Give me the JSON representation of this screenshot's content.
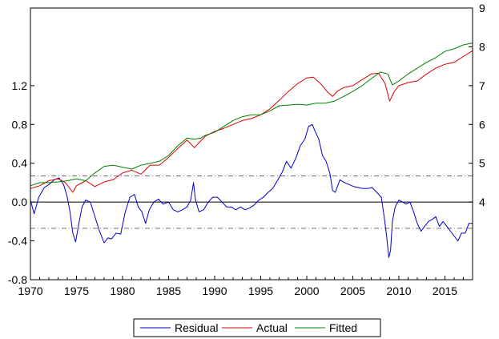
{
  "chart_data": {
    "type": "line",
    "title": "",
    "xlabel": "",
    "ylabel": "",
    "x_range": [
      1970,
      2018
    ],
    "x_ticks": [
      1970,
      1975,
      1980,
      1985,
      1990,
      1995,
      2000,
      2005,
      2010,
      2015
    ],
    "left_axis": {
      "ylim": [
        -0.8,
        2.0
      ],
      "ticks": [
        -0.8,
        -0.4,
        0.0,
        0.4,
        0.8,
        1.2
      ],
      "tick_labels": [
        "-0.8",
        "-0.4",
        "0.0",
        "0.4",
        "0.8",
        "1.2"
      ]
    },
    "right_axis": {
      "ylim": [
        2.0,
        9.0
      ],
      "ticks": [
        4,
        5,
        6,
        7,
        8,
        9
      ],
      "tick_labels": [
        "4",
        "5",
        "6",
        "7",
        "8",
        "9"
      ]
    },
    "reference_lines": [
      {
        "axis": "left",
        "y": 0.0,
        "style": "solid",
        "color": "#000000"
      },
      {
        "axis": "left",
        "y": 0.27,
        "style": "dash-dot",
        "color": "#6e6e6e"
      },
      {
        "axis": "left",
        "y": -0.27,
        "style": "dash-dot",
        "color": "#6e6e6e"
      }
    ],
    "legend_position": "bottom-center",
    "series": [
      {
        "name": "Residual",
        "axis": "left",
        "color": "#0000cc",
        "points": [
          [
            1970.0,
            0.02
          ],
          [
            1970.4,
            -0.12
          ],
          [
            1970.9,
            0.05
          ],
          [
            1971.5,
            0.15
          ],
          [
            1972.0,
            0.18
          ],
          [
            1972.6,
            0.23
          ],
          [
            1973.1,
            0.25
          ],
          [
            1973.6,
            0.18
          ],
          [
            1974.0,
            0.05
          ],
          [
            1974.3,
            -0.1
          ],
          [
            1974.6,
            -0.32
          ],
          [
            1974.9,
            -0.41
          ],
          [
            1975.2,
            -0.25
          ],
          [
            1975.6,
            -0.05
          ],
          [
            1976.0,
            0.02
          ],
          [
            1976.5,
            0.0
          ],
          [
            1977.0,
            -0.15
          ],
          [
            1977.5,
            -0.3
          ],
          [
            1978.0,
            -0.42
          ],
          [
            1978.4,
            -0.37
          ],
          [
            1978.8,
            -0.38
          ],
          [
            1979.3,
            -0.32
          ],
          [
            1979.8,
            -0.33
          ],
          [
            1980.3,
            -0.1
          ],
          [
            1980.8,
            0.05
          ],
          [
            1981.3,
            0.08
          ],
          [
            1981.7,
            -0.05
          ],
          [
            1982.1,
            -0.1
          ],
          [
            1982.5,
            -0.22
          ],
          [
            1982.9,
            -0.08
          ],
          [
            1983.4,
            0.0
          ],
          [
            1983.9,
            0.03
          ],
          [
            1984.4,
            -0.02
          ],
          [
            1985.0,
            0.0
          ],
          [
            1985.5,
            -0.08
          ],
          [
            1986.0,
            -0.1
          ],
          [
            1986.5,
            -0.08
          ],
          [
            1987.0,
            -0.05
          ],
          [
            1987.4,
            0.02
          ],
          [
            1987.7,
            0.2
          ],
          [
            1987.9,
            0.03
          ],
          [
            1988.3,
            -0.1
          ],
          [
            1988.8,
            -0.08
          ],
          [
            1989.3,
            0.0
          ],
          [
            1989.8,
            0.05
          ],
          [
            1990.3,
            0.05
          ],
          [
            1990.8,
            0.0
          ],
          [
            1991.3,
            -0.05
          ],
          [
            1991.8,
            -0.05
          ],
          [
            1992.3,
            -0.08
          ],
          [
            1992.8,
            -0.05
          ],
          [
            1993.3,
            -0.08
          ],
          [
            1993.8,
            -0.06
          ],
          [
            1994.3,
            -0.03
          ],
          [
            1994.8,
            0.02
          ],
          [
            1995.3,
            0.05
          ],
          [
            1995.8,
            0.1
          ],
          [
            1996.3,
            0.14
          ],
          [
            1996.8,
            0.22
          ],
          [
            1997.3,
            0.3
          ],
          [
            1997.8,
            0.42
          ],
          [
            1998.3,
            0.35
          ],
          [
            1998.8,
            0.45
          ],
          [
            1999.3,
            0.58
          ],
          [
            1999.8,
            0.65
          ],
          [
            2000.2,
            0.78
          ],
          [
            2000.6,
            0.8
          ],
          [
            2000.9,
            0.73
          ],
          [
            2001.3,
            0.65
          ],
          [
            2001.7,
            0.48
          ],
          [
            2002.1,
            0.42
          ],
          [
            2002.5,
            0.3
          ],
          [
            2002.8,
            0.12
          ],
          [
            2003.1,
            0.1
          ],
          [
            2003.6,
            0.23
          ],
          [
            2004.1,
            0.2
          ],
          [
            2004.6,
            0.18
          ],
          [
            2005.1,
            0.16
          ],
          [
            2005.6,
            0.15
          ],
          [
            2006.1,
            0.14
          ],
          [
            2006.6,
            0.14
          ],
          [
            2007.1,
            0.15
          ],
          [
            2007.6,
            0.1
          ],
          [
            2008.1,
            0.05
          ],
          [
            2008.4,
            -0.15
          ],
          [
            2008.7,
            -0.38
          ],
          [
            2008.9,
            -0.57
          ],
          [
            2009.1,
            -0.5
          ],
          [
            2009.3,
            -0.2
          ],
          [
            2009.6,
            -0.05
          ],
          [
            2010.0,
            0.02
          ],
          [
            2010.4,
            0.0
          ],
          [
            2010.8,
            -0.02
          ],
          [
            2011.2,
            0.0
          ],
          [
            2011.6,
            -0.1
          ],
          [
            2012.0,
            -0.22
          ],
          [
            2012.4,
            -0.3
          ],
          [
            2012.8,
            -0.25
          ],
          [
            2013.2,
            -0.2
          ],
          [
            2013.6,
            -0.18
          ],
          [
            2014.0,
            -0.15
          ],
          [
            2014.4,
            -0.25
          ],
          [
            2014.8,
            -0.2
          ],
          [
            2015.2,
            -0.25
          ],
          [
            2015.6,
            -0.3
          ],
          [
            2016.0,
            -0.35
          ],
          [
            2016.4,
            -0.4
          ],
          [
            2016.8,
            -0.32
          ],
          [
            2017.2,
            -0.32
          ],
          [
            2017.6,
            -0.22
          ],
          [
            2018.0,
            -0.22
          ]
        ]
      },
      {
        "name": "Actual",
        "axis": "right",
        "color": "#dd0000",
        "points": [
          [
            1970.0,
            4.35
          ],
          [
            1971.0,
            4.42
          ],
          [
            1972.0,
            4.55
          ],
          [
            1973.0,
            4.6
          ],
          [
            1973.8,
            4.5
          ],
          [
            1974.6,
            4.25
          ],
          [
            1975.0,
            4.42
          ],
          [
            1976.0,
            4.55
          ],
          [
            1977.0,
            4.4
          ],
          [
            1978.0,
            4.52
          ],
          [
            1979.0,
            4.58
          ],
          [
            1980.0,
            4.75
          ],
          [
            1981.0,
            4.82
          ],
          [
            1982.0,
            4.72
          ],
          [
            1983.0,
            4.95
          ],
          [
            1984.0,
            4.95
          ],
          [
            1985.0,
            5.15
          ],
          [
            1986.0,
            5.38
          ],
          [
            1987.0,
            5.6
          ],
          [
            1987.8,
            5.4
          ],
          [
            1988.5,
            5.58
          ],
          [
            1989.0,
            5.7
          ],
          [
            1990.0,
            5.82
          ],
          [
            1991.0,
            5.9
          ],
          [
            1992.0,
            6.0
          ],
          [
            1993.0,
            6.1
          ],
          [
            1994.0,
            6.15
          ],
          [
            1995.0,
            6.25
          ],
          [
            1996.0,
            6.4
          ],
          [
            1997.0,
            6.62
          ],
          [
            1998.0,
            6.85
          ],
          [
            1999.0,
            7.05
          ],
          [
            2000.0,
            7.2
          ],
          [
            2000.7,
            7.22
          ],
          [
            2001.5,
            7.05
          ],
          [
            2002.2,
            6.85
          ],
          [
            2002.8,
            6.72
          ],
          [
            2003.3,
            6.85
          ],
          [
            2004.0,
            6.95
          ],
          [
            2005.0,
            7.0
          ],
          [
            2006.0,
            7.15
          ],
          [
            2007.0,
            7.3
          ],
          [
            2007.8,
            7.32
          ],
          [
            2008.5,
            7.05
          ],
          [
            2009.0,
            6.6
          ],
          [
            2009.5,
            6.85
          ],
          [
            2010.0,
            7.0
          ],
          [
            2011.0,
            7.08
          ],
          [
            2012.0,
            7.12
          ],
          [
            2013.0,
            7.3
          ],
          [
            2014.0,
            7.45
          ],
          [
            2015.0,
            7.55
          ],
          [
            2016.0,
            7.6
          ],
          [
            2017.0,
            7.75
          ],
          [
            2018.0,
            7.9
          ]
        ]
      },
      {
        "name": "Fitted",
        "axis": "right",
        "color": "#008000",
        "points": [
          [
            1970.0,
            4.42
          ],
          [
            1971.0,
            4.5
          ],
          [
            1972.0,
            4.5
          ],
          [
            1973.0,
            4.52
          ],
          [
            1974.0,
            4.55
          ],
          [
            1975.0,
            4.6
          ],
          [
            1976.0,
            4.55
          ],
          [
            1977.0,
            4.75
          ],
          [
            1978.0,
            4.92
          ],
          [
            1979.0,
            4.95
          ],
          [
            1980.0,
            4.9
          ],
          [
            1981.0,
            4.85
          ],
          [
            1982.0,
            4.95
          ],
          [
            1983.0,
            5.0
          ],
          [
            1984.0,
            5.05
          ],
          [
            1985.0,
            5.2
          ],
          [
            1986.0,
            5.45
          ],
          [
            1987.0,
            5.65
          ],
          [
            1987.8,
            5.62
          ],
          [
            1988.5,
            5.65
          ],
          [
            1989.0,
            5.72
          ],
          [
            1990.0,
            5.8
          ],
          [
            1991.0,
            5.95
          ],
          [
            1992.0,
            6.1
          ],
          [
            1993.0,
            6.2
          ],
          [
            1994.0,
            6.25
          ],
          [
            1995.0,
            6.25
          ],
          [
            1996.0,
            6.35
          ],
          [
            1997.0,
            6.48
          ],
          [
            1998.0,
            6.5
          ],
          [
            1999.0,
            6.52
          ],
          [
            2000.0,
            6.5
          ],
          [
            2001.0,
            6.55
          ],
          [
            2002.0,
            6.55
          ],
          [
            2003.0,
            6.6
          ],
          [
            2004.0,
            6.72
          ],
          [
            2005.0,
            6.85
          ],
          [
            2006.0,
            7.0
          ],
          [
            2007.0,
            7.18
          ],
          [
            2008.0,
            7.35
          ],
          [
            2008.8,
            7.3
          ],
          [
            2009.3,
            7.02
          ],
          [
            2010.0,
            7.12
          ],
          [
            2011.0,
            7.3
          ],
          [
            2012.0,
            7.45
          ],
          [
            2013.0,
            7.6
          ],
          [
            2014.0,
            7.72
          ],
          [
            2015.0,
            7.88
          ],
          [
            2016.0,
            7.95
          ],
          [
            2017.0,
            8.05
          ],
          [
            2018.0,
            8.1
          ]
        ]
      }
    ]
  }
}
